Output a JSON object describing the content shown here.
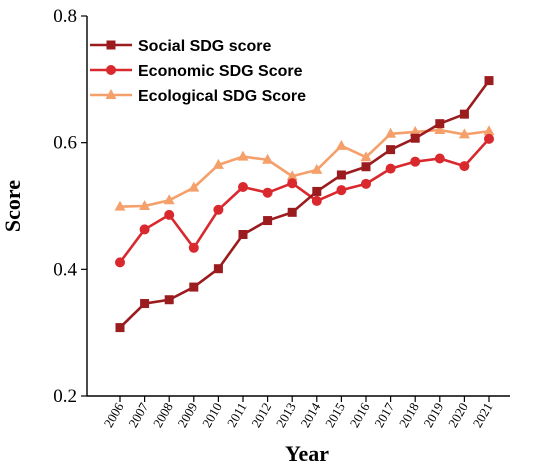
{
  "chart_data": {
    "type": "line",
    "xlabel": "Year",
    "ylabel": "Score",
    "ylim": [
      0.2,
      0.8
    ],
    "yticks": [
      "0.2",
      "0.4",
      "0.6",
      "0.8"
    ],
    "grid": false,
    "legend_position": "top-left",
    "categories": [
      "2006",
      "2007",
      "2008",
      "2009",
      "2010",
      "2011",
      "2012",
      "2013",
      "2014",
      "2015",
      "2016",
      "2017",
      "2018",
      "2019",
      "2020",
      "2021"
    ],
    "series": [
      {
        "name": "Social SDG score",
        "marker": "square",
        "color": "#9b1c1f",
        "values": [
          0.308,
          0.346,
          0.352,
          0.372,
          0.401,
          0.455,
          0.477,
          0.49,
          0.523,
          0.549,
          0.562,
          0.589,
          0.607,
          0.63,
          0.645,
          0.698
        ]
      },
      {
        "name": "Economic SDG Score",
        "marker": "circle",
        "color": "#d9282e",
        "values": [
          0.411,
          0.463,
          0.486,
          0.434,
          0.494,
          0.53,
          0.521,
          0.536,
          0.508,
          0.525,
          0.535,
          0.559,
          0.57,
          0.575,
          0.563,
          0.606
        ]
      },
      {
        "name": "Ecological SDG Score",
        "marker": "triangle",
        "color": "#f5a06a",
        "values": [
          0.499,
          0.5,
          0.509,
          0.529,
          0.565,
          0.578,
          0.573,
          0.547,
          0.557,
          0.595,
          0.577,
          0.614,
          0.617,
          0.62,
          0.613,
          0.618
        ]
      }
    ]
  }
}
